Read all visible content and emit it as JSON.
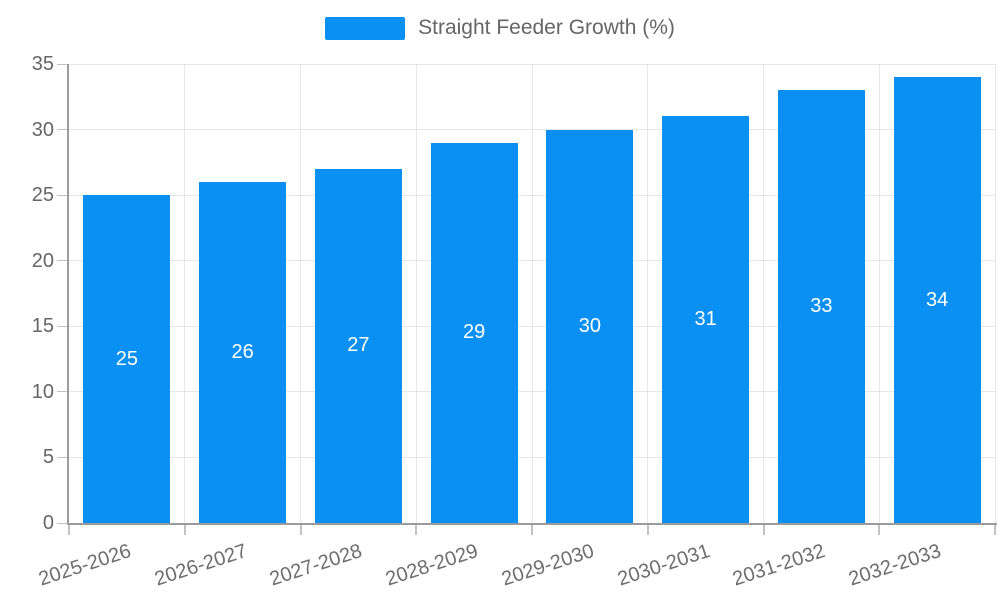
{
  "chart_data": {
    "type": "bar",
    "title": "",
    "xlabel": "",
    "ylabel": "",
    "legend": {
      "label": "Straight Feeder Growth (%)",
      "position": "top"
    },
    "categories": [
      "2025-2026",
      "2026-2027",
      "2027-2028",
      "2028-2029",
      "2029-2030",
      "2030-2031",
      "2031-2032",
      "2032-2033"
    ],
    "series": [
      {
        "name": "Straight Feeder Growth (%)",
        "values": [
          25,
          26,
          27,
          29,
          30,
          31,
          33,
          34
        ]
      }
    ],
    "value_labels": [
      "25",
      "26",
      "27",
      "29",
      "30",
      "31",
      "33",
      "34"
    ],
    "ylim": [
      0,
      35
    ],
    "yticks": [
      0,
      5,
      10,
      15,
      20,
      25,
      30,
      35
    ],
    "grid": true,
    "colors": {
      "bar": "#0a90f2",
      "value_label": "#ffffff",
      "axis_line": "#9b9b9b",
      "gridline": "#e6e6e6",
      "tick_mark": "#c2c2c2",
      "tick_text": "#666666",
      "legend_text": "#666666",
      "background": "#ffffff"
    }
  }
}
